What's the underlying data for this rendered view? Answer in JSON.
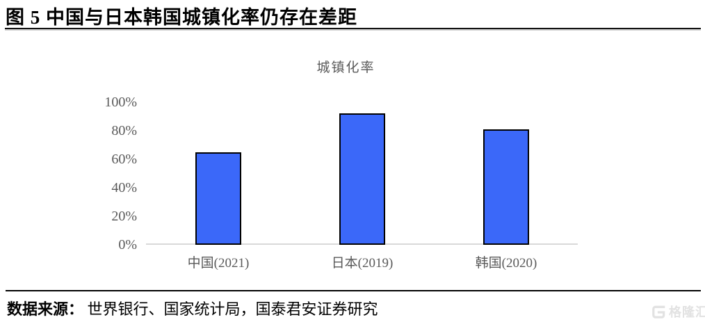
{
  "page": {
    "figure_title": "图 5 中国与日本韩国城镇化率仍存在差距",
    "source_label": "数据来源：",
    "source_body": " 世界银行、国家统计局，国泰君安证券研究",
    "watermark_text": "格隆汇"
  },
  "chart_data": {
    "type": "bar",
    "title": "城镇化率",
    "categories": [
      "中国(2021)",
      "日本(2019)",
      "韩国(2020)"
    ],
    "values": [
      65,
      92,
      81
    ],
    "unit": "%",
    "ylim": [
      0,
      100
    ],
    "yticks": [
      "100%",
      "80%",
      "60%",
      "40%",
      "20%",
      "0%"
    ],
    "grid": false,
    "legend": "none",
    "bar_color": "#3B68F9",
    "bar_border_color": "#000000",
    "axis_line_color": "#D9D9D9",
    "tick_label_color": "#595959"
  }
}
